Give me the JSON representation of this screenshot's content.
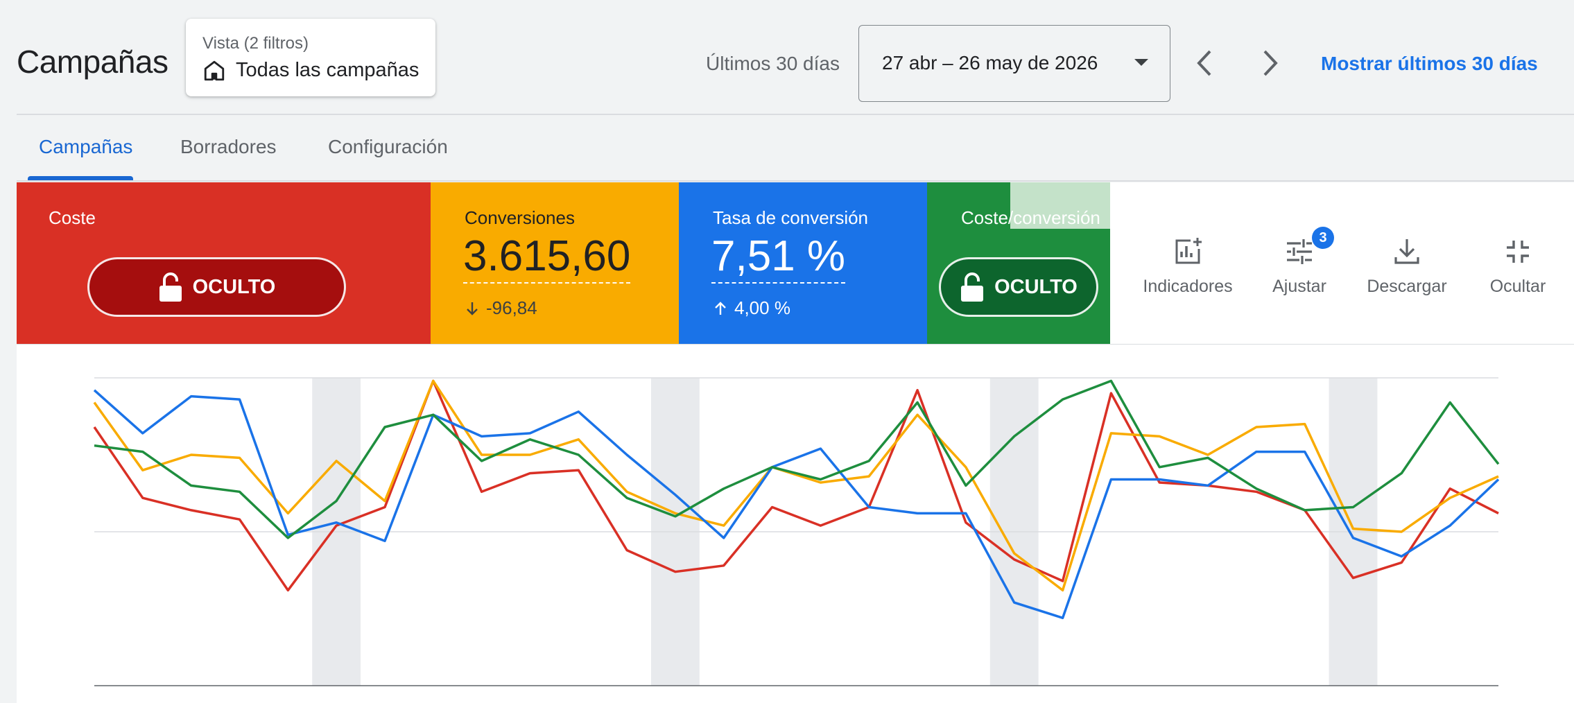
{
  "header": {
    "title": "Campañas",
    "view": {
      "label": "Vista (2 filtros)",
      "value": "Todas las campañas",
      "icon": "home-icon"
    },
    "range_label": "Últimos 30 días",
    "date_range": "27 abr – 26 may de 2026",
    "show_last_label": "Mostrar últimos 30 días"
  },
  "tabs": [
    {
      "label": "Campañas",
      "active": true
    },
    {
      "label": "Borradores",
      "active": false
    },
    {
      "label": "Configuración",
      "active": false
    }
  ],
  "scorecards": {
    "cost": {
      "label": "Coste",
      "hidden_label": "OCULTO",
      "color": "#d93025"
    },
    "conversions": {
      "label": "Conversiones",
      "value": "3.615,60",
      "change": "-96,84",
      "direction": "down",
      "color": "#f9ab00"
    },
    "conv_rate": {
      "label": "Tasa de conversión",
      "value": "7,51 %",
      "change": "4,00 %",
      "direction": "up",
      "color": "#1a73e8"
    },
    "cost_per_conv": {
      "label": "Coste/conversión",
      "hidden_label": "OCULTO",
      "color": "#1e8e3e"
    }
  },
  "toolbar": {
    "indicators": "Indicadores",
    "adjust": "Ajustar",
    "adjust_badge": "3",
    "download": "Descargar",
    "hide": "Ocultar"
  },
  "chart_data": {
    "type": "line",
    "x": [
      1,
      2,
      3,
      4,
      5,
      6,
      7,
      8,
      9,
      10,
      11,
      12,
      13,
      14,
      15,
      16,
      17,
      18,
      19,
      20,
      21,
      22,
      23,
      24,
      25,
      26,
      27,
      28,
      29,
      30
    ],
    "ylim": [
      0,
      100
    ],
    "grid": true,
    "weekend_bands": [
      6,
      13,
      20,
      27
    ],
    "series": [
      {
        "color": "#d93025",
        "values": [
          84,
          61,
          57,
          54,
          31,
          52,
          58,
          99,
          63,
          69,
          70,
          44,
          37,
          39,
          58,
          52,
          58,
          96,
          53,
          41,
          34,
          95,
          66,
          65,
          63,
          57,
          35,
          40,
          64,
          56
        ]
      },
      {
        "color": "#f9ab00",
        "values": [
          92,
          70,
          75,
          74,
          56,
          73,
          60,
          99,
          75,
          75,
          80,
          63,
          56,
          52,
          71,
          66,
          68,
          88,
          71,
          43,
          31,
          82,
          81,
          75,
          84,
          85,
          51,
          50,
          61,
          68
        ]
      },
      {
        "color": "#1a73e8",
        "values": [
          96,
          82,
          94,
          93,
          49,
          53,
          47,
          88,
          81,
          82,
          89,
          75,
          62,
          48,
          71,
          77,
          58,
          56,
          56,
          27,
          22,
          67,
          67,
          65,
          76,
          76,
          48,
          42,
          52,
          67
        ]
      },
      {
        "color": "#1e8e3e",
        "values": [
          78,
          76,
          65,
          63,
          48,
          60,
          84,
          88,
          73,
          80,
          75,
          61,
          55,
          64,
          71,
          67,
          73,
          92,
          65,
          81,
          93,
          99,
          71,
          74,
          64,
          57,
          58,
          69,
          92,
          72
        ]
      }
    ]
  }
}
